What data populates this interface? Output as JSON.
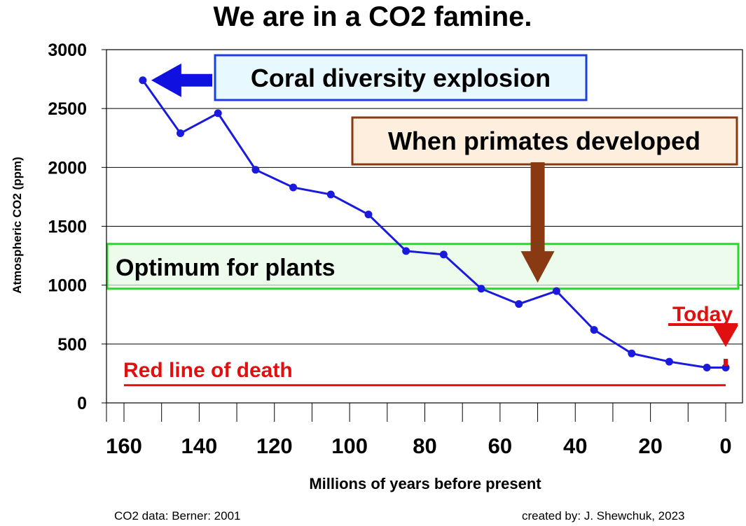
{
  "chart_data": {
    "type": "line",
    "title": "We are in a CO2 famine.",
    "xlabel": "Millions of years before present",
    "ylabel": "Atmospheric CO2 (ppm)",
    "xlim": [
      0,
      160
    ],
    "x_reversed": true,
    "ylim": [
      0,
      3000
    ],
    "grid": true,
    "x_ticks": [
      160,
      140,
      120,
      100,
      80,
      60,
      40,
      20,
      0
    ],
    "y_ticks": [
      0,
      500,
      1000,
      1500,
      2000,
      2500,
      3000
    ],
    "series": [
      {
        "name": "Atmospheric CO2",
        "color": "#1a1adc",
        "x": [
          155,
          145,
          135,
          125,
          115,
          105,
          95,
          85,
          75,
          65,
          55,
          45,
          35,
          25,
          15,
          5,
          0
        ],
        "values": [
          2740,
          2290,
          2460,
          1980,
          1830,
          1770,
          1600,
          1290,
          1260,
          970,
          840,
          950,
          620,
          420,
          350,
          300,
          300
        ]
      }
    ],
    "annotations": {
      "coral": {
        "text": "Coral diversity explosion",
        "x": 155,
        "y": 2740,
        "border_color": "#1a3fe0",
        "fill_color": "#e8f8ff",
        "arrow_color": "#1010e0"
      },
      "primates": {
        "text": "When primates developed",
        "x": 50,
        "y": 950,
        "border_color": "#8a3a12",
        "fill_color": "#fdeede",
        "arrow_color": "#8a3a12"
      },
      "optimum": {
        "text": "Optimum for plants",
        "y_range": [
          970,
          1350
        ],
        "border_color": "#22dd22",
        "fill_color": "#e6fae6"
      },
      "death_line": {
        "text": "Red line of death",
        "y": 150,
        "color": "#e01010"
      },
      "today": {
        "text": "Today",
        "x": 0,
        "color": "#e01010"
      }
    }
  },
  "credits": {
    "data_source": "CO2 data: Berner: 2001",
    "author": "created by: J. Shewchuk, 2023"
  }
}
